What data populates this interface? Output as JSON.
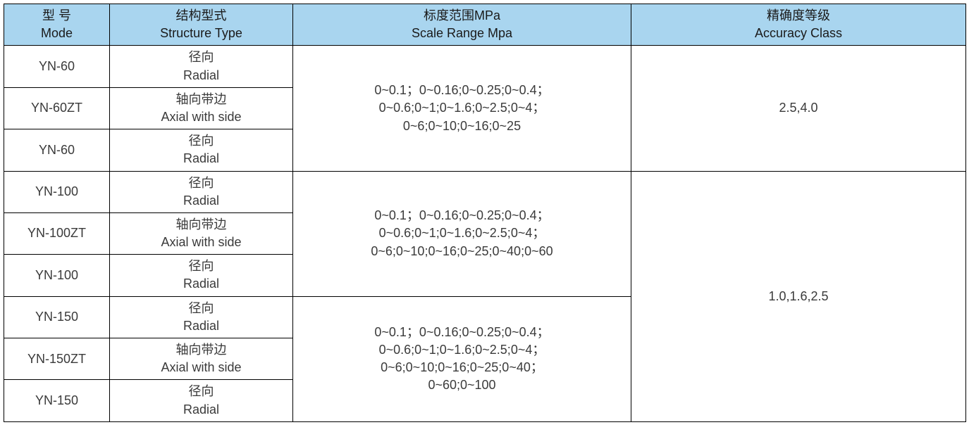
{
  "table": {
    "header_bg": "#a9d5ef",
    "header_color": "#1a1a1a",
    "cell_color": "#3a3a3a",
    "font_size_header": 18,
    "font_size_cell": 18,
    "headers": {
      "mode": {
        "cn": "型 号",
        "en": "Mode"
      },
      "structure": {
        "cn": "结构型式",
        "en": "Structure Type"
      },
      "range": {
        "cn": "标度范围MPa",
        "en": "Scale Range Mpa"
      },
      "accuracy": {
        "cn": "精确度等级",
        "en": "Accuracy Class"
      }
    },
    "structure_types": {
      "radial": {
        "cn": "径向",
        "en": "Radial"
      },
      "axial": {
        "cn": "轴向带边",
        "en": "Axial with side"
      }
    },
    "groups": [
      {
        "rows": [
          {
            "mode": "YN-60",
            "structure": "radial"
          },
          {
            "mode": "YN-60ZT",
            "structure": "axial"
          },
          {
            "mode": "YN-60",
            "structure": "radial"
          }
        ],
        "range_lines": [
          "0~0.1；0~0.16;0~0.25;0~0.4；",
          "0~0.6;0~1;0~1.6;0~2.5;0~4；",
          "0~6;0~10;0~16;0~25"
        ],
        "accuracy": "2.5,4.0",
        "accuracy_rowspan": 3
      },
      {
        "rows": [
          {
            "mode": "YN-100",
            "structure": "radial"
          },
          {
            "mode": "YN-100ZT",
            "structure": "axial"
          },
          {
            "mode": "YN-100",
            "structure": "radial"
          }
        ],
        "range_lines": [
          "0~0.1；0~0.16;0~0.25;0~0.4；",
          "0~0.6;0~1;0~1.6;0~2.5;0~4；",
          "0~6;0~10;0~16;0~25;0~40;0~60"
        ],
        "accuracy": "1.0,1.6,2.5",
        "accuracy_rowspan": 6
      },
      {
        "rows": [
          {
            "mode": "YN-150",
            "structure": "radial"
          },
          {
            "mode": "YN-150ZT",
            "structure": "axial"
          },
          {
            "mode": "YN-150",
            "structure": "radial"
          }
        ],
        "range_lines": [
          "0~0.1；0~0.16;0~0.25;0~0.4；",
          "0~0.6;0~1;0~1.6;0~2.5;0~4；",
          "0~6;0~10;0~16;0~25;0~40；",
          "0~60;0~100"
        ]
      }
    ]
  }
}
